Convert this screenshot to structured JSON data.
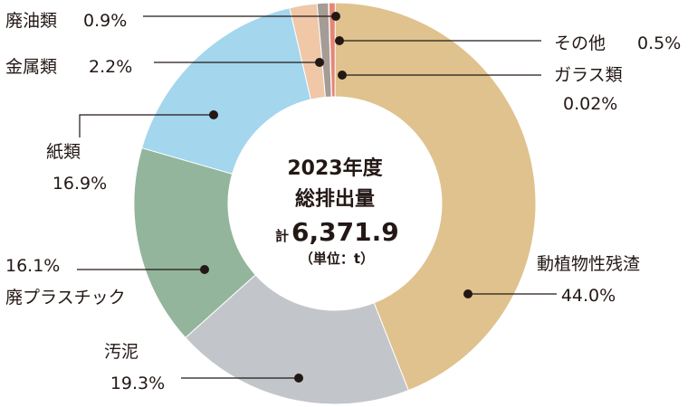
{
  "chart_data": {
    "type": "pie",
    "variant": "donut",
    "title": "",
    "center": {
      "line1": "2023年度",
      "line2": "総排出量",
      "total_prefix": "計",
      "total_value": "6,371.9",
      "unit": "（単位：t）"
    },
    "slices": [
      {
        "name": "動植物性残渣",
        "value": 44.0,
        "label": "44.0%",
        "color": "#DFC28D"
      },
      {
        "name": "汚泥",
        "value": 19.3,
        "label": "19.3%",
        "color": "#C2C6CA"
      },
      {
        "name": "廃プラスチック",
        "value": 16.1,
        "label": "16.1%",
        "color": "#93B59B"
      },
      {
        "name": "紙類",
        "value": 16.9,
        "label": "16.9%",
        "color": "#A4D6EE"
      },
      {
        "name": "金属類",
        "value": 2.2,
        "label": "2.2%",
        "color": "#F0C7A7"
      },
      {
        "name": "廃油類",
        "value": 0.9,
        "label": "0.9%",
        "color": "#A49C95"
      },
      {
        "name": "その他",
        "value": 0.5,
        "label": "0.5%",
        "color": "#E78575"
      },
      {
        "name": "ガラス類",
        "value": 0.02,
        "label": "0.02%",
        "color": "#A8B1B7"
      }
    ],
    "slice_order_clockwise_from_top": [
      "動植物性残渣",
      "汚泥",
      "廃プラスチック",
      "紙類",
      "金属類",
      "廃油類",
      "ガラス類",
      "その他"
    ],
    "unit": "%"
  }
}
